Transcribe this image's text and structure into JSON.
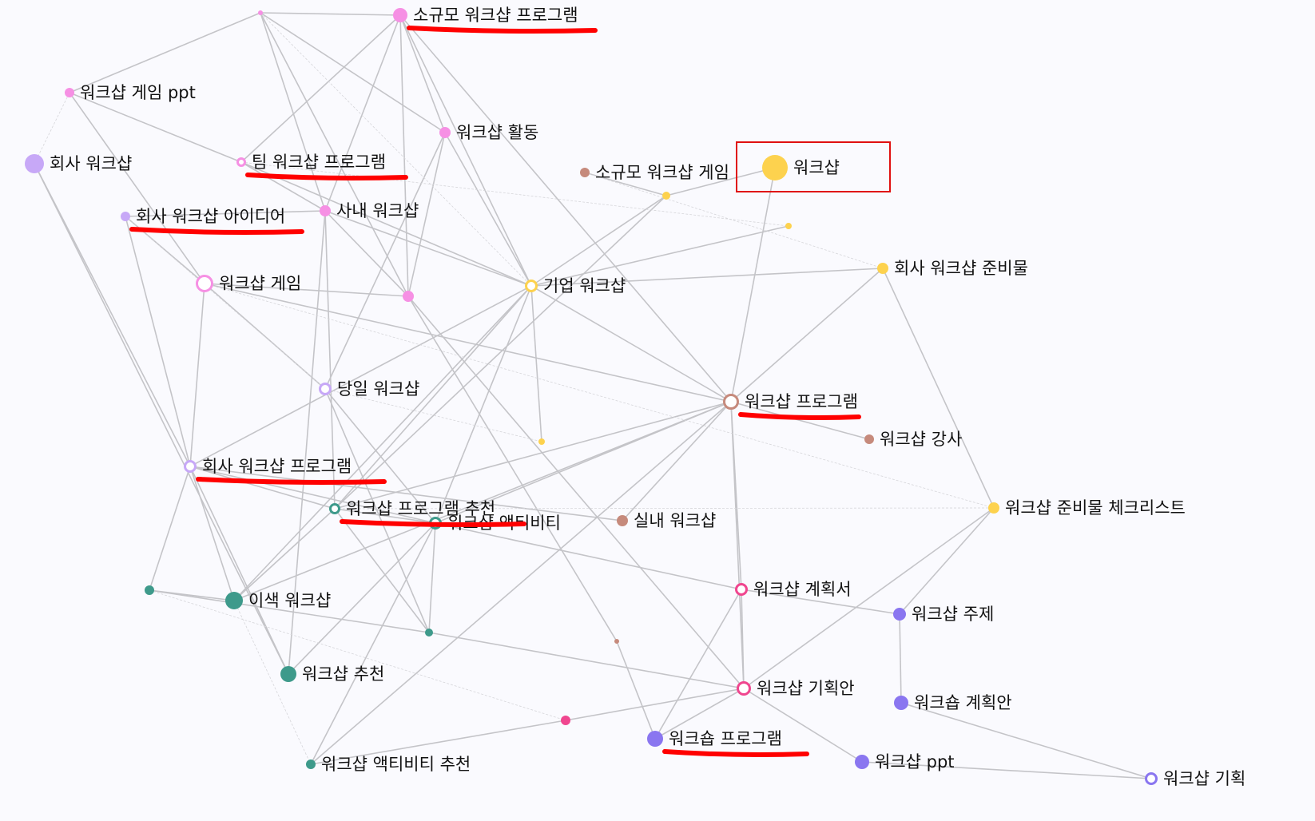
{
  "colors": {
    "background": "#fafafe",
    "pink": "#f690e4",
    "hot_pink": "#f0468f",
    "lavender": "#c7a8f7",
    "yellow": "#fdd24e",
    "brown": "#c68a7c",
    "teal": "#3e9a8b",
    "purple": "#8a76f0",
    "edge": "#c4c4c8",
    "annotation": "#ff0000"
  },
  "nodes": [
    {
      "id": 1,
      "label": "",
      "color": "pink",
      "hollow": false
    },
    {
      "id": 2,
      "label": "소규모 워크샵 프로그램",
      "color": "pink",
      "hollow": false
    },
    {
      "id": 3,
      "label": "워크샵 게임 ppt",
      "color": "pink",
      "hollow": false
    },
    {
      "id": 4,
      "label": "워크샵 활동",
      "color": "pink",
      "hollow": false
    },
    {
      "id": 5,
      "label": "회사 워크샵",
      "color": "lavender",
      "hollow": false
    },
    {
      "id": 6,
      "label": "팀 워크샵 프로그램",
      "color": "pink",
      "hollow": true
    },
    {
      "id": 7,
      "label": "소규모 워크샵 게임",
      "color": "brown",
      "hollow": false
    },
    {
      "id": 8,
      "label": "워크샵",
      "color": "yellow",
      "hollow": false
    },
    {
      "id": 9,
      "label": "",
      "color": "yellow",
      "hollow": false
    },
    {
      "id": 10,
      "label": "",
      "color": "yellow",
      "hollow": false
    },
    {
      "id": 11,
      "label": "회사 워크샵 아이디어",
      "color": "lavender",
      "hollow": false
    },
    {
      "id": 12,
      "label": "사내 워크샵",
      "color": "pink",
      "hollow": false
    },
    {
      "id": 13,
      "label": "회사 워크샵 준비물",
      "color": "yellow",
      "hollow": false
    },
    {
      "id": 14,
      "label": "워크샵 게임",
      "color": "pink",
      "hollow": true
    },
    {
      "id": 15,
      "label": "",
      "color": "pink",
      "hollow": false
    },
    {
      "id": 16,
      "label": "기업 워크샵",
      "color": "yellow",
      "hollow": true
    },
    {
      "id": 17,
      "label": "당일 워크샵",
      "color": "lavender",
      "hollow": true
    },
    {
      "id": 18,
      "label": "워크샵 프로그램",
      "color": "brown",
      "hollow": true
    },
    {
      "id": 19,
      "label": "워크샵 강사",
      "color": "brown",
      "hollow": false
    },
    {
      "id": 20,
      "label": "",
      "color": "yellow",
      "hollow": false
    },
    {
      "id": 21,
      "label": "회사 워크샵 프로그램",
      "color": "lavender",
      "hollow": true
    },
    {
      "id": 22,
      "label": "워크샵 프로그램 추천",
      "color": "teal",
      "hollow": true
    },
    {
      "id": 23,
      "label": "워크샵 액티비티",
      "color": "teal",
      "hollow": true
    },
    {
      "id": 24,
      "label": "실내 워크샵",
      "color": "brown",
      "hollow": false
    },
    {
      "id": 25,
      "label": "워크샵 준비물 체크리스트",
      "color": "yellow",
      "hollow": false
    },
    {
      "id": 26,
      "label": "",
      "color": "teal",
      "hollow": false
    },
    {
      "id": 27,
      "label": "이색 워크샵",
      "color": "teal",
      "hollow": false
    },
    {
      "id": 28,
      "label": "워크샵 계획서",
      "color": "hot_pink",
      "hollow": true
    },
    {
      "id": 29,
      "label": "워크샵 주제",
      "color": "purple",
      "hollow": false
    },
    {
      "id": 30,
      "label": "",
      "color": "teal",
      "hollow": false
    },
    {
      "id": 31,
      "label": "",
      "color": "brown",
      "hollow": true
    },
    {
      "id": 32,
      "label": "워크샵 추천",
      "color": "teal",
      "hollow": false
    },
    {
      "id": 33,
      "label": "워크샵 기획안",
      "color": "hot_pink",
      "hollow": true
    },
    {
      "id": 34,
      "label": "워크숍 계획안",
      "color": "purple",
      "hollow": false
    },
    {
      "id": 35,
      "label": "",
      "color": "hot_pink",
      "hollow": false
    },
    {
      "id": 36,
      "label": "워크숍 프로그램",
      "color": "purple",
      "hollow": false
    },
    {
      "id": 37,
      "label": "워크샵 ppt",
      "color": "purple",
      "hollow": false
    },
    {
      "id": 38,
      "label": "워크샵 액티비티 추천",
      "color": "teal",
      "hollow": false
    },
    {
      "id": 39,
      "label": "워크샵 기획",
      "color": "purple",
      "hollow": true
    }
  ],
  "edges": [
    [
      1,
      2
    ],
    [
      1,
      3
    ],
    [
      1,
      12
    ],
    [
      1,
      15
    ],
    [
      1,
      4
    ],
    [
      2,
      6
    ],
    [
      2,
      12
    ],
    [
      2,
      4
    ],
    [
      2,
      16
    ],
    [
      2,
      18
    ],
    [
      2,
      15
    ],
    [
      3,
      6
    ],
    [
      4,
      16
    ],
    [
      4,
      15
    ],
    [
      4,
      17
    ],
    [
      5,
      21
    ],
    [
      6,
      12
    ],
    [
      6,
      16
    ],
    [
      11,
      14
    ],
    [
      11,
      12
    ],
    [
      11,
      21
    ],
    [
      12,
      15
    ],
    [
      12,
      16
    ],
    [
      12,
      22
    ],
    [
      14,
      21
    ],
    [
      14,
      15
    ],
    [
      14,
      17
    ],
    [
      14,
      18
    ],
    [
      16,
      18
    ],
    [
      16,
      21
    ],
    [
      16,
      22
    ],
    [
      16,
      23
    ],
    [
      16,
      27
    ],
    [
      16,
      13
    ],
    [
      16,
      20
    ],
    [
      16,
      9
    ],
    [
      8,
      18
    ],
    [
      8,
      9
    ],
    [
      7,
      9
    ],
    [
      9,
      22
    ],
    [
      10,
      16
    ],
    [
      13,
      18
    ],
    [
      13,
      25
    ],
    [
      18,
      19
    ],
    [
      18,
      24
    ],
    [
      18,
      22
    ],
    [
      18,
      23
    ],
    [
      18,
      28
    ],
    [
      18,
      33
    ],
    [
      18,
      38
    ],
    [
      21,
      22
    ],
    [
      21,
      23
    ],
    [
      21,
      26
    ],
    [
      21,
      27
    ],
    [
      21,
      32
    ],
    [
      22,
      23
    ],
    [
      22,
      30
    ],
    [
      22,
      27
    ],
    [
      23,
      28
    ],
    [
      23,
      30
    ],
    [
      23,
      32
    ],
    [
      23,
      38
    ],
    [
      26,
      27
    ],
    [
      26,
      30
    ],
    [
      27,
      18
    ],
    [
      28,
      29
    ],
    [
      28,
      33
    ],
    [
      28,
      36
    ],
    [
      29,
      34
    ],
    [
      29,
      25
    ],
    [
      33,
      25
    ],
    [
      33,
      36
    ],
    [
      33,
      37
    ],
    [
      30,
      33
    ],
    [
      35,
      38
    ],
    [
      35,
      33
    ],
    [
      34,
      39
    ],
    [
      37,
      39
    ],
    [
      17,
      23
    ],
    [
      17,
      30
    ],
    [
      24,
      21
    ],
    [
      31,
      15
    ],
    [
      3,
      14
    ],
    [
      5,
      32
    ],
    [
      12,
      32
    ],
    [
      15,
      33
    ],
    [
      36,
      31
    ]
  ],
  "thin_edges": [
    [
      1,
      16
    ],
    [
      6,
      10
    ],
    [
      7,
      13
    ],
    [
      17,
      20
    ],
    [
      14,
      25
    ],
    [
      22,
      25
    ],
    [
      26,
      35
    ],
    [
      5,
      3
    ],
    [
      11,
      17
    ],
    [
      27,
      38
    ]
  ],
  "annotations": {
    "underlined_nodes": [
      2,
      6,
      11,
      18,
      21,
      22,
      36
    ],
    "boxed_nodes": [
      8
    ]
  }
}
